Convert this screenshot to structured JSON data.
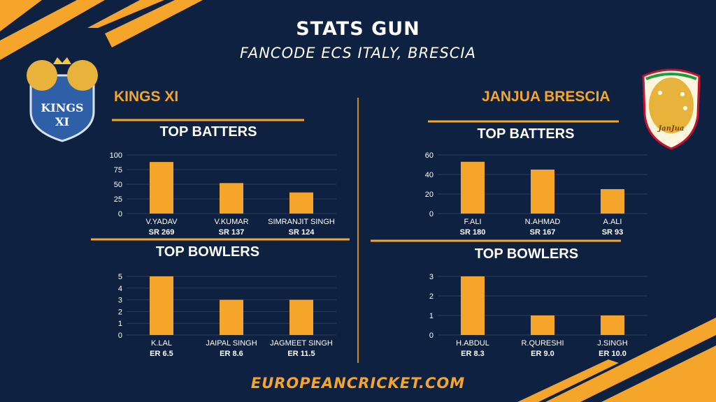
{
  "title": "STATS GUN",
  "subtitle": "FANCODE ECS ITALY, BRESCIA",
  "footer": "EUROPEANCRICKET.COM",
  "colors": {
    "background": "#0e2140",
    "accent": "#f4a52a",
    "text": "#ffffff"
  },
  "teams": {
    "left": {
      "name": "KINGS XI",
      "logo_text": "KINGS XI"
    },
    "right": {
      "name": "JANJUA BRESCIA",
      "logo_text": "JanJua"
    }
  },
  "sections": {
    "batters": "TOP BATTERS",
    "bowlers": "TOP BOWLERS"
  },
  "chart_data": [
    {
      "type": "bar",
      "title": "TOP BATTERS",
      "team": "KINGS XI",
      "categories": [
        "V.YADAV",
        "V.KUMAR",
        "SIMRANJIT SINGH"
      ],
      "values": [
        88,
        52,
        36
      ],
      "sublabels": [
        "SR 269",
        "SR 137",
        "SR 124"
      ],
      "ylim": [
        0,
        100
      ],
      "yticks": [
        0,
        25,
        50,
        75,
        100
      ],
      "grid": true
    },
    {
      "type": "bar",
      "title": "TOP BOWLERS",
      "team": "KINGS XI",
      "categories": [
        "K.LAL",
        "JAIPAL SINGH",
        "JAGMEET SINGH"
      ],
      "values": [
        5,
        3,
        3
      ],
      "sublabels": [
        "ER 6.5",
        "ER 8.6",
        "ER 11.5"
      ],
      "ylim": [
        0,
        5
      ],
      "yticks": [
        0,
        1,
        2,
        3,
        4,
        5
      ],
      "grid": true
    },
    {
      "type": "bar",
      "title": "TOP BATTERS",
      "team": "JANJUA BRESCIA",
      "categories": [
        "F.ALI",
        "N.AHMAD",
        "A.ALI"
      ],
      "values": [
        53,
        45,
        25
      ],
      "sublabels": [
        "SR 180",
        "SR 167",
        "SR 93"
      ],
      "ylim": [
        0,
        60
      ],
      "yticks": [
        0,
        20,
        40,
        60
      ],
      "grid": true
    },
    {
      "type": "bar",
      "title": "TOP BOWLERS",
      "team": "JANJUA BRESCIA",
      "categories": [
        "H.ABDUL",
        "R.QURESHI",
        "J.SINGH"
      ],
      "values": [
        3,
        1,
        1
      ],
      "sublabels": [
        "ER 8.3",
        "ER 9.0",
        "ER 10.0"
      ],
      "ylim": [
        0,
        3
      ],
      "yticks": [
        0,
        1,
        2,
        3
      ],
      "grid": true
    }
  ]
}
